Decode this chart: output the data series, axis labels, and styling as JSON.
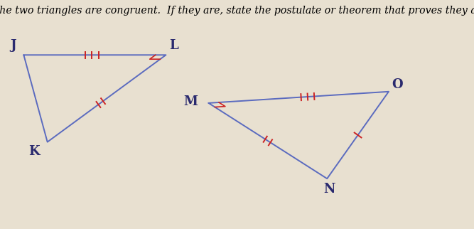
{
  "title_text": "Determine if the two triangles are congruent.  If they are, state the postulate or theorem that proves they are congruent.",
  "bg_color": "#e8e0d0",
  "triangle1": {
    "J": [
      0.05,
      0.76
    ],
    "K": [
      0.1,
      0.38
    ],
    "L": [
      0.35,
      0.76
    ],
    "color": "#5b6bbf",
    "label_offsets": {
      "J": [
        -0.022,
        0.04
      ],
      "K": [
        -0.028,
        -0.04
      ],
      "L": [
        0.016,
        0.04
      ]
    }
  },
  "triangle2": {
    "M": [
      0.44,
      0.55
    ],
    "O": [
      0.82,
      0.6
    ],
    "N": [
      0.69,
      0.22
    ],
    "color": "#5b6bbf",
    "label_offsets": {
      "M": [
        -0.038,
        0.005
      ],
      "O": [
        0.018,
        0.03
      ],
      "N": [
        0.005,
        -0.045
      ]
    }
  },
  "tick_color": "#cc2222",
  "font_size_title": 10.2,
  "font_size_labels": 13,
  "fig_w": 6.67,
  "fig_h": 3.22,
  "dpi": 100
}
